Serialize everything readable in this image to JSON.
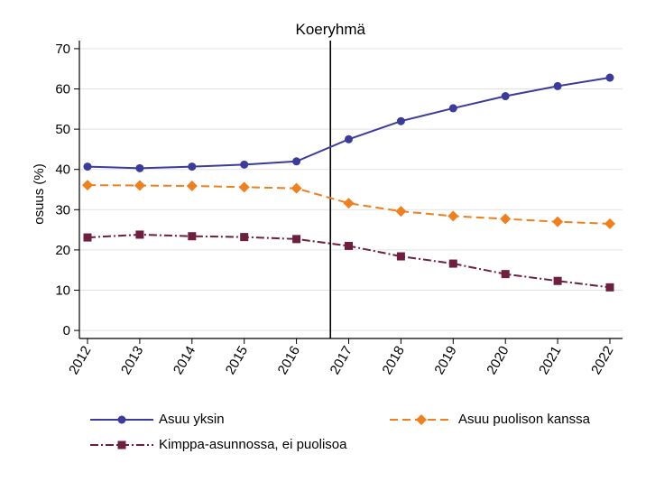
{
  "chart_data": {
    "type": "line",
    "title": "Koeryhmä",
    "xlabel": "",
    "ylabel": "osuus (%)",
    "x": [
      "2012",
      "2013",
      "2014",
      "2015",
      "2016",
      "2017",
      "2018",
      "2019",
      "2020",
      "2021",
      "2022"
    ],
    "yticks": [
      "0",
      "10",
      "20",
      "30",
      "40",
      "50",
      "60",
      "70"
    ],
    "ylim": [
      -2,
      72
    ],
    "yticks_values": [
      0,
      10,
      20,
      30,
      40,
      50,
      60,
      70
    ],
    "grid": true,
    "vline_at_year": 2016.65,
    "legend_position": "bottom",
    "series": [
      {
        "name": "Asuu yksin",
        "color": "#3b3b9c",
        "marker": "circle",
        "dash": "solid",
        "values": [
          40.7,
          40.3,
          40.7,
          41.2,
          42.0,
          47.5,
          52.0,
          55.2,
          58.2,
          60.7,
          62.8
        ]
      },
      {
        "name": "Asuu puolison kanssa",
        "color": "#f07f1e",
        "marker": "diamond",
        "dash": "dash",
        "values": [
          36.1,
          36.0,
          35.9,
          35.6,
          35.3,
          31.6,
          29.6,
          28.4,
          27.7,
          27.0,
          26.5
        ]
      },
      {
        "name": "Kimppa-asunnossa, ei puolisoa",
        "color": "#6e1f3f",
        "marker": "square",
        "dash": "dashdot",
        "values": [
          23.1,
          23.8,
          23.4,
          23.2,
          22.7,
          21.0,
          18.4,
          16.6,
          14.0,
          12.3,
          10.7
        ]
      }
    ]
  }
}
